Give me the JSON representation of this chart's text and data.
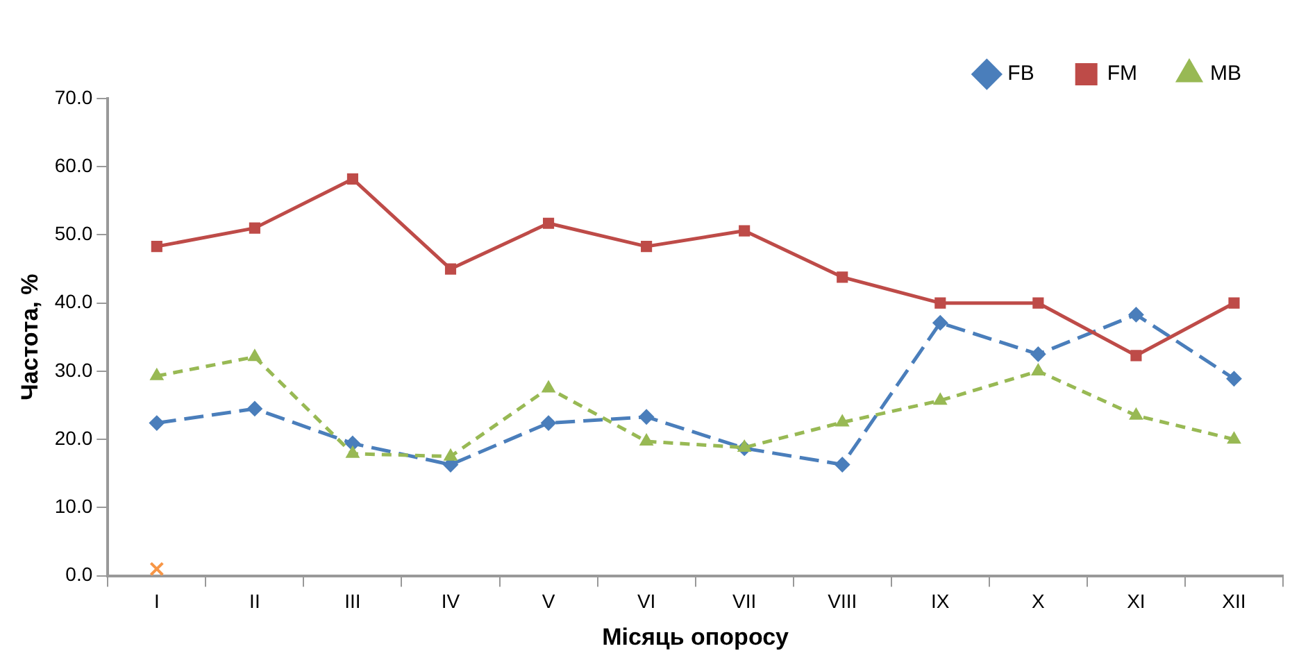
{
  "chart_data": {
    "type": "line",
    "xlabel": "Місяць опоросу",
    "ylabel": "Частота, %",
    "categories": [
      "I",
      "II",
      "III",
      "IV",
      "V",
      "VI",
      "VII",
      "VIII",
      "IX",
      "X",
      "XI",
      "XII"
    ],
    "series": [
      {
        "name": "FB",
        "color": "#4a7ebb",
        "marker": "diamond",
        "line_style": "dashed",
        "values": [
          22.4,
          24.5,
          19.4,
          16.3,
          22.4,
          23.3,
          18.7,
          16.3,
          37.1,
          32.5,
          38.3,
          28.9
        ]
      },
      {
        "name": "FM",
        "color": "#be4b48",
        "marker": "square",
        "line_style": "solid",
        "values": [
          48.3,
          51.0,
          58.2,
          45.0,
          51.7,
          48.3,
          50.6,
          43.8,
          40.0,
          40.0,
          32.3,
          40.0
        ]
      },
      {
        "name": "MB",
        "color": "#98b954",
        "marker": "triangle",
        "line_style": "dotted",
        "values": [
          29.3,
          32.1,
          17.9,
          17.5,
          27.5,
          19.7,
          18.8,
          22.5,
          25.7,
          30.0,
          23.5,
          20.0
        ]
      },
      {
        "type": "scatter",
        "color": "#f79646",
        "marker": "cross",
        "values": [
          1.0,
          null,
          null,
          null,
          null,
          null,
          null,
          null,
          null,
          null,
          null,
          null
        ]
      }
    ],
    "ylim": [
      0,
      70
    ],
    "yticks": [
      {
        "value": 0,
        "label": "0.0"
      },
      {
        "value": 10,
        "label": "10.0"
      },
      {
        "value": 20,
        "label": "20.0"
      },
      {
        "value": 30,
        "label": "30.0"
      },
      {
        "value": 40,
        "label": "40.0"
      },
      {
        "value": 50,
        "label": "50.0"
      },
      {
        "value": 60,
        "label": "60.0"
      },
      {
        "value": 70,
        "label": "70.0"
      }
    ],
    "legend": "top right"
  }
}
